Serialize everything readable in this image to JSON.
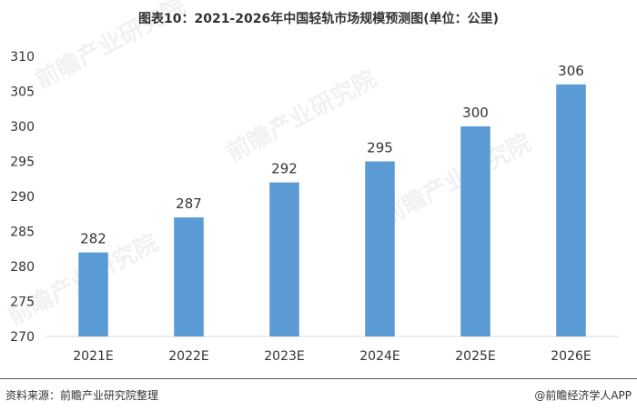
{
  "header": {
    "title": "图表10：2021-2026年中国轻轨市场规模预测图(单位：公里)"
  },
  "footer": {
    "source": "资料来源：前瞻产业研究院整理",
    "credit": "@前瞻经济学人APP"
  },
  "watermark": {
    "text": "前瞻产业研究院"
  },
  "colors": {
    "bar": "#5b9bd5",
    "axis": "#d9d9d9",
    "text": "#333333"
  },
  "chart_data": {
    "type": "bar",
    "title": "图表10：2021-2026年中国轻轨市场规模预测图(单位：公里)",
    "xlabel": "",
    "ylabel": "",
    "categories": [
      "2021E",
      "2022E",
      "2023E",
      "2024E",
      "2025E",
      "2026E"
    ],
    "values": [
      282,
      287,
      292,
      295,
      300,
      306
    ],
    "data_labels": [
      "282",
      "287",
      "292",
      "295",
      "300",
      "306"
    ],
    "ylim": [
      270,
      310
    ],
    "yticks": [
      270,
      275,
      280,
      285,
      290,
      295,
      300,
      305,
      310
    ],
    "ytick_labels": [
      "270",
      "275",
      "280",
      "285",
      "290",
      "295",
      "300",
      "305",
      "310"
    ],
    "grid": false,
    "legend": "none"
  }
}
